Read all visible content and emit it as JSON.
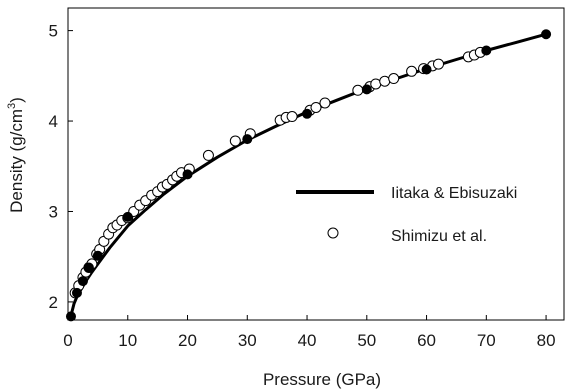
{
  "chart_data": {
    "type": "scatter",
    "xlabel": "Pressure (GPa)",
    "ylabel_main": "Density (g/cm",
    "ylabel_sup": "3",
    "ylabel_close": ")",
    "xlim": [
      0,
      83
    ],
    "ylim": [
      1.8,
      5.25
    ],
    "x_ticks": [
      "0",
      "10",
      "20",
      "30",
      "40",
      "50",
      "60",
      "70",
      "80"
    ],
    "y_ticks": [
      "2",
      "3",
      "4",
      "5"
    ],
    "grid": false,
    "legend_position": "right",
    "series": [
      {
        "name": "Iitaka & Ebisuzaki",
        "style": "line-with-filled-markers",
        "color": "#000000",
        "curve": [
          [
            0.5,
            1.85
          ],
          [
            1,
            1.98
          ],
          [
            1.5,
            2.06
          ],
          [
            2,
            2.12
          ],
          [
            3,
            2.23
          ],
          [
            4,
            2.33
          ],
          [
            5,
            2.42
          ],
          [
            7,
            2.6
          ],
          [
            10,
            2.84
          ],
          [
            13,
            3.02
          ],
          [
            16,
            3.19
          ],
          [
            20,
            3.39
          ],
          [
            25,
            3.6
          ],
          [
            30,
            3.79
          ],
          [
            35,
            3.95
          ],
          [
            40,
            4.1
          ],
          [
            45,
            4.23
          ],
          [
            50,
            4.36
          ],
          [
            55,
            4.47
          ],
          [
            60,
            4.58
          ],
          [
            65,
            4.68
          ],
          [
            70,
            4.78
          ],
          [
            75,
            4.87
          ],
          [
            80,
            4.96
          ]
        ],
        "points": [
          [
            0.5,
            1.84
          ],
          [
            1.5,
            2.1
          ],
          [
            2.5,
            2.23
          ],
          [
            3.5,
            2.38
          ],
          [
            5,
            2.51
          ],
          [
            10,
            2.94
          ],
          [
            20,
            3.41
          ],
          [
            30,
            3.8
          ],
          [
            40,
            4.08
          ],
          [
            50,
            4.35
          ],
          [
            60,
            4.57
          ],
          [
            70,
            4.78
          ],
          [
            80,
            4.96
          ]
        ]
      },
      {
        "name": "Shimizu et al.",
        "style": "open-circles",
        "color": "#000000",
        "points": [
          [
            1.2,
            2.1
          ],
          [
            1.8,
            2.18
          ],
          [
            2.5,
            2.27
          ],
          [
            3,
            2.33
          ],
          [
            3.5,
            2.38
          ],
          [
            4,
            2.42
          ],
          [
            4.8,
            2.53
          ],
          [
            5.3,
            2.58
          ],
          [
            6,
            2.67
          ],
          [
            6.8,
            2.75
          ],
          [
            7.5,
            2.82
          ],
          [
            8.2,
            2.85
          ],
          [
            9,
            2.9
          ],
          [
            10,
            2.93
          ],
          [
            11,
            3.0
          ],
          [
            12,
            3.07
          ],
          [
            13,
            3.12
          ],
          [
            14,
            3.18
          ],
          [
            15,
            3.22
          ],
          [
            15.8,
            3.27
          ],
          [
            16.6,
            3.3
          ],
          [
            17.5,
            3.35
          ],
          [
            18.2,
            3.39
          ],
          [
            19,
            3.43
          ],
          [
            20.3,
            3.47
          ],
          [
            23.5,
            3.62
          ],
          [
            28,
            3.78
          ],
          [
            30.5,
            3.86
          ],
          [
            35.5,
            4.01
          ],
          [
            36.5,
            4.04
          ],
          [
            37.5,
            4.05
          ],
          [
            40.5,
            4.12
          ],
          [
            41.5,
            4.15
          ],
          [
            43,
            4.2
          ],
          [
            48.5,
            4.34
          ],
          [
            50.5,
            4.38
          ],
          [
            51.5,
            4.41
          ],
          [
            53,
            4.44
          ],
          [
            54.5,
            4.47
          ],
          [
            57.5,
            4.55
          ],
          [
            59.5,
            4.58
          ],
          [
            61,
            4.61
          ],
          [
            62,
            4.63
          ],
          [
            67,
            4.71
          ],
          [
            68,
            4.73
          ],
          [
            69,
            4.76
          ]
        ]
      }
    ]
  }
}
